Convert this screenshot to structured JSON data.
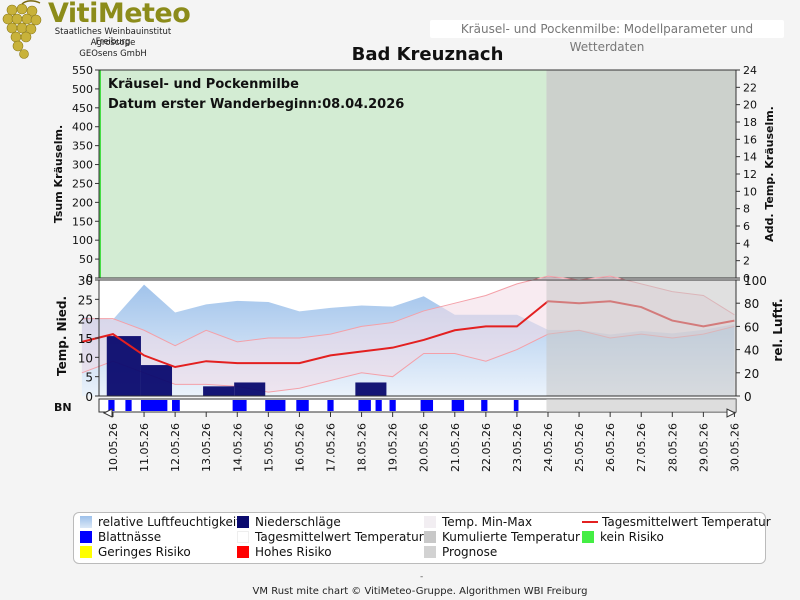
{
  "logo": {
    "title": "VitiMeteo",
    "lines": [
      "Staatliches Weinbauinstitut Freiburg",
      "Agroscope",
      "GEOsens GmbH"
    ]
  },
  "header": {
    "topbar": "Kräusel- und Pockenmilbe: Modellparameter und Wetterdaten",
    "title": "Bad Kreuznach"
  },
  "chart_data": [
    {
      "type": "area",
      "panel": "upper",
      "annotation_lines": [
        "Kräusel- und Pockenmilbe",
        "Datum  erster Wanderbeginn:08.04.2026"
      ],
      "ylabel_left": "Tsum Kräuselm.",
      "ylabel_right": "Add. Temp. Kräuselm.",
      "ylim_left": [
        0,
        550
      ],
      "yticks_left": [
        0,
        50,
        100,
        150,
        200,
        250,
        300,
        350,
        400,
        450,
        500,
        550
      ],
      "ylim_right": [
        0,
        24
      ],
      "yticks_right": [
        0,
        2,
        4,
        6,
        8,
        10,
        12,
        14,
        16,
        18,
        20,
        22,
        24
      ],
      "risk_band": "kein Risiko",
      "prognose_from": "24.05.26"
    },
    {
      "type": "line",
      "panel": "lower",
      "ylabel_left": "Temp. Nied.",
      "ylabel_right": "rel. Luftf.",
      "ylim_left": [
        0,
        30
      ],
      "yticks_left": [
        0,
        5,
        10,
        15,
        20,
        25,
        30
      ],
      "ylim_right": [
        0,
        100
      ],
      "yticks_right": [
        0,
        20,
        40,
        60,
        80,
        100
      ],
      "dates": [
        "10.05.26",
        "11.05.26",
        "12.05.26",
        "13.05.26",
        "14.05.26",
        "15.05.26",
        "16.05.26",
        "17.05.26",
        "18.05.26",
        "19.05.26",
        "20.05.26",
        "21.05.26",
        "22.05.26",
        "23.05.26",
        "24.05.26",
        "25.05.26",
        "26.05.26",
        "27.05.26",
        "28.05.26",
        "29.05.26",
        "30.05.26"
      ],
      "humidity_x": [
        9.0,
        10.0,
        11.0,
        12.0,
        13.0,
        14.0,
        15.0,
        16.0,
        17.0,
        18.0,
        19.0,
        20.0,
        21.0,
        22.0,
        23.0,
        24.0,
        25.0,
        26.0,
        27.0,
        28.0,
        29.0,
        30.0
      ],
      "humidity": [
        68,
        66,
        96,
        72,
        79,
        82,
        81,
        73,
        76,
        78,
        77,
        86,
        70,
        70,
        70,
        57,
        57,
        53,
        56,
        54,
        57,
        62
      ],
      "temp_mean_x": [
        9.0,
        10.0,
        11.0,
        12.0,
        13.0,
        14.0,
        15.0,
        16.0,
        17.0,
        18.0,
        19.0,
        20.0,
        21.0,
        22.0,
        23.0,
        24.0,
        25.0,
        26.0,
        27.0,
        28.0,
        29.0,
        30.0
      ],
      "temp_mean": [
        14,
        16,
        10.5,
        7.5,
        9,
        8.5,
        8.5,
        8.5,
        10.5,
        11.5,
        12.5,
        14.5,
        17,
        18,
        18,
        24.5,
        24,
        24.5,
        23,
        19.5,
        18,
        19.5
      ],
      "temp_min": [
        6,
        9,
        6,
        3,
        3,
        2.5,
        1,
        2,
        4,
        6,
        5,
        11,
        11,
        9,
        12,
        16,
        17,
        15,
        16,
        15,
        16,
        18
      ],
      "temp_max": [
        20,
        20,
        17,
        13,
        17,
        14,
        15,
        15,
        16,
        18,
        19,
        22,
        24,
        26,
        29,
        31,
        30,
        31,
        29,
        27,
        26,
        21
      ],
      "precip": [
        {
          "from": 9.8,
          "to": 10.9,
          "value": 15.5
        },
        {
          "from": 10.9,
          "to": 11.9,
          "value": 8
        },
        {
          "from": 12.9,
          "to": 13.9,
          "value": 2.5
        },
        {
          "from": 13.9,
          "to": 14.9,
          "value": 3.5
        },
        {
          "from": 17.8,
          "to": 18.8,
          "value": 3.5
        }
      ],
      "leaf_wetness_label": "BN",
      "leaf_wetness": [
        {
          "from": 9.85,
          "to": 10.05
        },
        {
          "from": 10.4,
          "to": 10.6
        },
        {
          "from": 10.9,
          "to": 11.75
        },
        {
          "from": 11.9,
          "to": 12.15
        },
        {
          "from": 13.85,
          "to": 14.3
        },
        {
          "from": 14.9,
          "to": 15.55
        },
        {
          "from": 15.9,
          "to": 16.3
        },
        {
          "from": 16.9,
          "to": 17.1
        },
        {
          "from": 17.9,
          "to": 18.3
        },
        {
          "from": 18.45,
          "to": 18.65
        },
        {
          "from": 18.9,
          "to": 19.1
        },
        {
          "from": 19.9,
          "to": 20.3
        },
        {
          "from": 20.9,
          "to": 21.3
        },
        {
          "from": 21.85,
          "to": 22.05
        },
        {
          "from": 22.9,
          "to": 23.05
        }
      ],
      "prognose_from": 23.95
    }
  ],
  "legend": [
    {
      "label": "relative Luftfeuchtigkeit",
      "swatch": "humidity"
    },
    {
      "label": "Niederschläge",
      "swatch": "#0a0a6e"
    },
    {
      "label": "Temp. Min-Max",
      "swatch": "#f2eef2"
    },
    {
      "label": "Tagesmittelwert Temperatur",
      "swatch": "line-red"
    },
    {
      "label": "Blattnässe",
      "swatch": "#0000ff"
    },
    {
      "label": "Tagesmittelwert Temperatur",
      "swatch": "#ffffff"
    },
    {
      "label": "Kumulierte Temperatur",
      "swatch": "#c8c8c8"
    },
    {
      "label": "kein Risiko",
      "swatch": "#44ee44"
    },
    {
      "label": "Geringes Risiko",
      "swatch": "#ffff00"
    },
    {
      "label": "Hohes Risiko",
      "swatch": "#ff0000"
    },
    {
      "label": "Prognose",
      "swatch": "#d2d2d2"
    }
  ],
  "footer": {
    "dash": "-",
    "text": "VM Rust mite chart © VitiMeteo-Gruppe. Algorithmen WBI Freiburg"
  }
}
